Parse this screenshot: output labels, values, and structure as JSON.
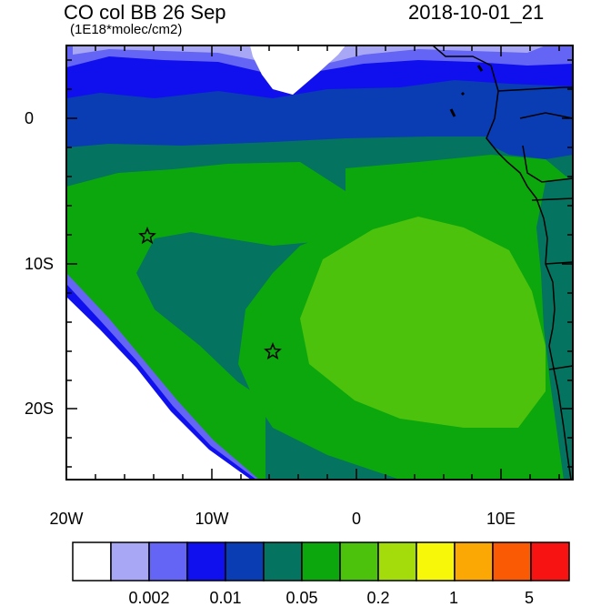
{
  "header": {
    "title": "CO col BB 26 Sep",
    "subtitle": "(1E18*molec/cm2)",
    "timestamp": "2018-10-01_21"
  },
  "map": {
    "lon_range": [
      -20,
      15
    ],
    "lat_range": [
      -25,
      5
    ],
    "lon_ticks": [
      "20W",
      "10W",
      "0",
      "10E"
    ],
    "lat_ticks": [
      "0",
      "10S",
      "20S"
    ],
    "markers": [
      {
        "name": "star-marker-1",
        "lon": -14.4,
        "lat": -8.0
      },
      {
        "name": "star-marker-2",
        "lon": -5.8,
        "lat": -16.0
      }
    ]
  },
  "colorbar": {
    "colors": [
      "#ffffff",
      "#a7a7f5",
      "#6565f5",
      "#1010ee",
      "#0a3cb4",
      "#04735f",
      "#0ca70c",
      "#4cc20c",
      "#a3db0b",
      "#f7f70a",
      "#fba805",
      "#fb5a05",
      "#f81313"
    ],
    "labels": [
      "0.002",
      "0.01",
      "0.05",
      "0.2",
      "1",
      "5"
    ]
  }
}
